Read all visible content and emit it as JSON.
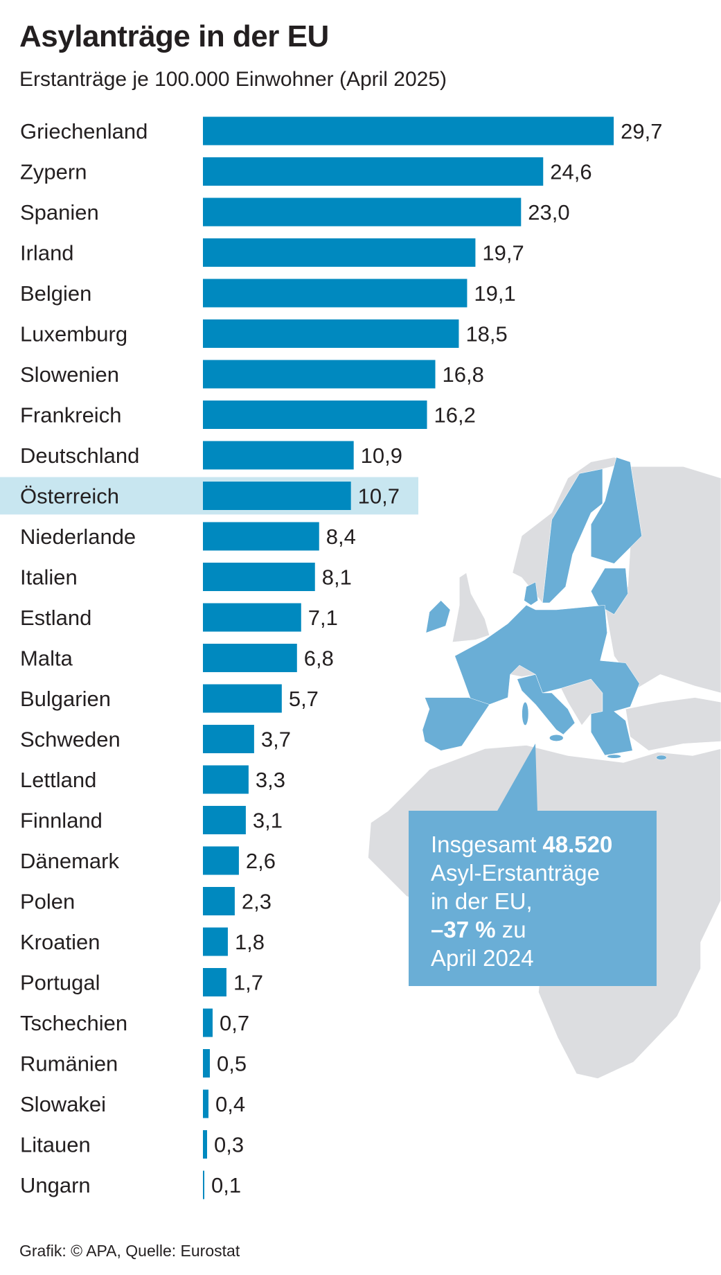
{
  "header": {
    "title": "Asylanträge in der EU",
    "subtitle": "Erstanträge je 100.000 Einwohner (April 2025)"
  },
  "callout": {
    "line1_text": "Insgesamt ",
    "line1_bold": "48.520",
    "line2": "Asyl-Erstanträge",
    "line3": "in der EU,",
    "line4_bold": "–37 %",
    "line4_text": " zu",
    "line5": "April 2024"
  },
  "footer": "Grafik: © APA, Quelle: Eurostat",
  "colors": {
    "bar": "#0089bf",
    "highlight": "#c8e6f0",
    "eu_map": "#6aaed6",
    "land": "#dcdde0"
  },
  "chart_data": {
    "type": "bar",
    "orientation": "horizontal",
    "title": "Asylanträge in der EU",
    "subtitle": "Erstanträge je 100.000 Einwohner (April 2025)",
    "highlight": "Österreich",
    "categories": [
      "Griechenland",
      "Zypern",
      "Spanien",
      "Irland",
      "Belgien",
      "Luxemburg",
      "Slowenien",
      "Frankreich",
      "Deutschland",
      "Österreich",
      "Niederlande",
      "Italien",
      "Estland",
      "Malta",
      "Bulgarien",
      "Schweden",
      "Lettland",
      "Finnland",
      "Dänemark",
      "Polen",
      "Kroatien",
      "Portugal",
      "Tschechien",
      "Rumänien",
      "Slowakei",
      "Litauen",
      "Ungarn"
    ],
    "values": [
      29.7,
      24.6,
      23.0,
      19.7,
      19.1,
      18.5,
      16.8,
      16.2,
      10.9,
      10.7,
      8.4,
      8.1,
      7.1,
      6.8,
      5.7,
      3.7,
      3.3,
      3.1,
      2.6,
      2.3,
      1.8,
      1.7,
      0.7,
      0.5,
      0.4,
      0.3,
      0.1
    ],
    "value_labels": [
      "29,7",
      "24,6",
      "23,0",
      "19,7",
      "19,1",
      "18,5",
      "16,8",
      "16,2",
      "10,9",
      "10,7",
      "8,4",
      "8,1",
      "7,1",
      "6,8",
      "5,7",
      "3,7",
      "3,3",
      "3,1",
      "2,6",
      "2,3",
      "1,8",
      "1,7",
      "0,7",
      "0,5",
      "0,4",
      "0,3",
      "0,1"
    ],
    "xlim": [
      0,
      30
    ],
    "grid": false
  }
}
